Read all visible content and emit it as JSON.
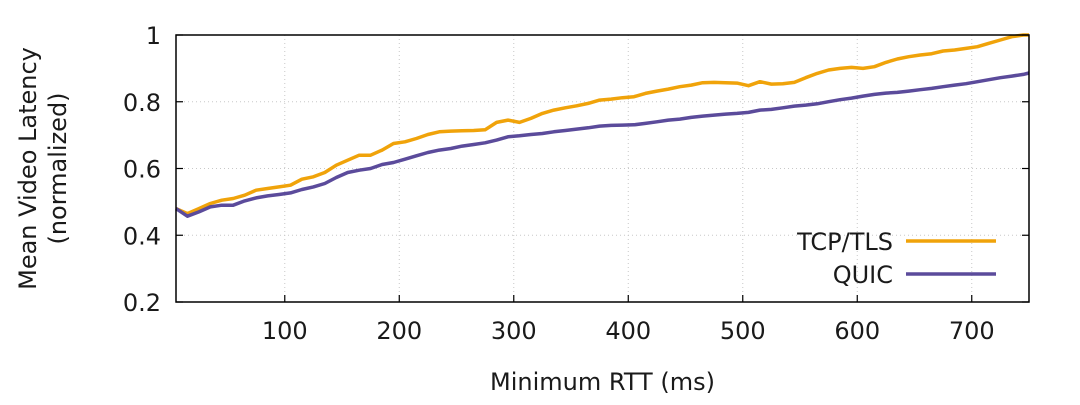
{
  "chart_data": {
    "type": "line",
    "title": "",
    "xlabel": "Minimum RTT (ms)",
    "ylabel": "Mean Video Latency",
    "ylabel_line2": "(normalized)",
    "xlim": [
      5,
      750
    ],
    "ylim": [
      0.2,
      1.0
    ],
    "xticks": [
      100,
      200,
      300,
      400,
      500,
      600,
      700
    ],
    "xtick_labels": [
      "100",
      "200",
      "300",
      "400",
      "500",
      "600",
      "700"
    ],
    "yticks": [
      0.2,
      0.4,
      0.6,
      0.8,
      1.0
    ],
    "ytick_labels": [
      "0.2",
      "0.4",
      "0.6",
      "0.8",
      "1"
    ],
    "grid": true,
    "legend_position": "bottom-right",
    "series": [
      {
        "name": "TCP/TLS",
        "color": "#f0a30a",
        "x": [
          5,
          15,
          25,
          35,
          45,
          55,
          65,
          75,
          85,
          95,
          105,
          115,
          125,
          135,
          145,
          155,
          165,
          175,
          185,
          195,
          205,
          215,
          225,
          235,
          245,
          255,
          265,
          275,
          285,
          295,
          305,
          315,
          325,
          335,
          345,
          355,
          365,
          375,
          385,
          395,
          405,
          415,
          425,
          435,
          445,
          455,
          465,
          475,
          485,
          495,
          505,
          515,
          525,
          535,
          545,
          555,
          565,
          575,
          585,
          595,
          605,
          615,
          625,
          635,
          645,
          655,
          665,
          675,
          685,
          695,
          705,
          715,
          725,
          735,
          745,
          750
        ],
        "values": [
          0.48,
          0.465,
          0.48,
          0.495,
          0.505,
          0.51,
          0.52,
          0.535,
          0.54,
          0.545,
          0.55,
          0.568,
          0.575,
          0.588,
          0.61,
          0.625,
          0.64,
          0.64,
          0.655,
          0.675,
          0.68,
          0.69,
          0.702,
          0.71,
          0.712,
          0.713,
          0.714,
          0.716,
          0.738,
          0.745,
          0.738,
          0.75,
          0.765,
          0.775,
          0.782,
          0.788,
          0.795,
          0.805,
          0.808,
          0.812,
          0.815,
          0.825,
          0.832,
          0.838,
          0.845,
          0.85,
          0.857,
          0.858,
          0.857,
          0.856,
          0.848,
          0.86,
          0.853,
          0.854,
          0.858,
          0.872,
          0.885,
          0.895,
          0.9,
          0.903,
          0.9,
          0.905,
          0.918,
          0.928,
          0.935,
          0.94,
          0.944,
          0.952,
          0.955,
          0.96,
          0.965,
          0.975,
          0.985,
          0.995,
          1.0,
          1.0
        ]
      },
      {
        "name": "QUIC",
        "color": "#5b4b9b",
        "x": [
          5,
          15,
          25,
          35,
          45,
          55,
          65,
          75,
          85,
          95,
          105,
          115,
          125,
          135,
          145,
          155,
          165,
          175,
          185,
          195,
          205,
          215,
          225,
          235,
          245,
          255,
          265,
          275,
          285,
          295,
          305,
          315,
          325,
          335,
          345,
          355,
          365,
          375,
          385,
          395,
          405,
          415,
          425,
          435,
          445,
          455,
          465,
          475,
          485,
          495,
          505,
          515,
          525,
          535,
          545,
          555,
          565,
          575,
          585,
          595,
          605,
          615,
          625,
          635,
          645,
          655,
          665,
          675,
          685,
          695,
          705,
          715,
          725,
          735,
          745,
          750
        ],
        "values": [
          0.48,
          0.457,
          0.47,
          0.485,
          0.49,
          0.49,
          0.503,
          0.512,
          0.518,
          0.522,
          0.527,
          0.537,
          0.545,
          0.555,
          0.573,
          0.588,
          0.595,
          0.6,
          0.612,
          0.618,
          0.628,
          0.638,
          0.648,
          0.655,
          0.66,
          0.667,
          0.672,
          0.677,
          0.685,
          0.695,
          0.698,
          0.702,
          0.705,
          0.71,
          0.714,
          0.718,
          0.722,
          0.727,
          0.729,
          0.73,
          0.731,
          0.735,
          0.74,
          0.745,
          0.748,
          0.753,
          0.757,
          0.76,
          0.763,
          0.765,
          0.768,
          0.775,
          0.777,
          0.782,
          0.787,
          0.79,
          0.794,
          0.8,
          0.806,
          0.811,
          0.817,
          0.822,
          0.826,
          0.828,
          0.832,
          0.836,
          0.84,
          0.845,
          0.85,
          0.854,
          0.86,
          0.866,
          0.872,
          0.877,
          0.882,
          0.886
        ]
      }
    ]
  }
}
